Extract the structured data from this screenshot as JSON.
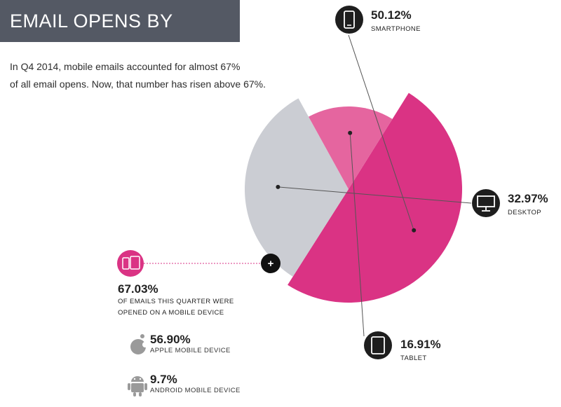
{
  "title": "EMAIL OPENS BY DEVICE",
  "intro": {
    "line1": "In Q4 2014, mobile emails accounted for almost 67%",
    "line2": "of all email opens. Now, that number has risen above 67%."
  },
  "chart_data": {
    "type": "pie",
    "title": "EMAIL OPENS BY DEVICE",
    "slices": [
      {
        "name": "SMARTPHONE",
        "value": 50.12,
        "label": "50.12%",
        "color": "#da3384",
        "icon": "smartphone-icon"
      },
      {
        "name": "DESKTOP",
        "value": 32.97,
        "label": "32.97%",
        "color": "#cbcdd3",
        "icon": "desktop-icon"
      },
      {
        "name": "TABLET",
        "value": 16.91,
        "label": "16.91%",
        "color": "#e5659f",
        "icon": "tablet-icon"
      }
    ]
  },
  "mobile_summary": {
    "percent": "67.03%",
    "line1": "OF EMAILS THIS QUARTER WERE",
    "line2": "OPENED ON A MOBILE DEVICE",
    "icon": "mobile-devices-icon",
    "marker": "+"
  },
  "breakdown": [
    {
      "percent": "56.90%",
      "label": "APPLE MOBILE DEVICE",
      "icon": "apple-icon"
    },
    {
      "percent": "9.7%",
      "label": "ANDROID MOBILE DEVICE",
      "icon": "android-icon"
    }
  ],
  "colors": {
    "title_bg": "#545964",
    "accent": "#da3384",
    "dark": "#1e1e1e",
    "muted": "#8e8e8e"
  }
}
